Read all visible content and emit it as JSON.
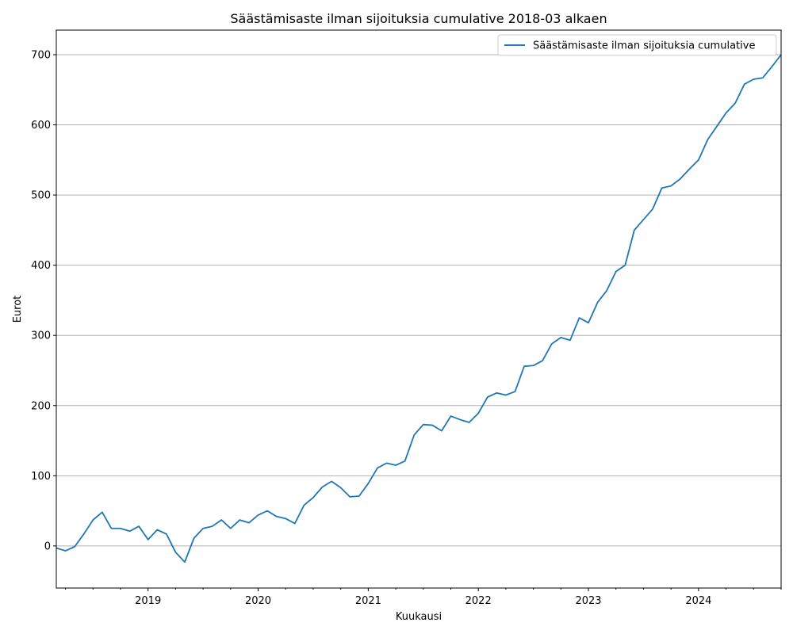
{
  "chart_data": {
    "type": "line",
    "title": "Säästämisaste ilman sijoituksia cumulative 2018-03 alkaen",
    "xlabel": "Kuukausi",
    "ylabel": "Eurot",
    "grid": "y",
    "legend_position": "top-right",
    "xlim": [
      "2018-03",
      "2024-10"
    ],
    "ylim": [
      -60,
      735
    ],
    "x_ticks": [
      "2019",
      "2020",
      "2021",
      "2022",
      "2023",
      "2024"
    ],
    "y_ticks": [
      0,
      100,
      200,
      300,
      400,
      500,
      600,
      700
    ],
    "series": [
      {
        "name": "Säästämisaste ilman sijoituksia cumulative",
        "color": "#1f77b4",
        "x": [
          "2018-03",
          "2018-04",
          "2018-05",
          "2018-06",
          "2018-07",
          "2018-08",
          "2018-09",
          "2018-10",
          "2018-11",
          "2018-12",
          "2019-01",
          "2019-02",
          "2019-03",
          "2019-04",
          "2019-05",
          "2019-06",
          "2019-07",
          "2019-08",
          "2019-09",
          "2019-10",
          "2019-11",
          "2019-12",
          "2020-01",
          "2020-02",
          "2020-03",
          "2020-04",
          "2020-05",
          "2020-06",
          "2020-07",
          "2020-08",
          "2020-09",
          "2020-10",
          "2020-11",
          "2020-12",
          "2021-01",
          "2021-02",
          "2021-03",
          "2021-04",
          "2021-05",
          "2021-06",
          "2021-07",
          "2021-08",
          "2021-09",
          "2021-10",
          "2021-11",
          "2021-12",
          "2022-01",
          "2022-02",
          "2022-03",
          "2022-04",
          "2022-05",
          "2022-06",
          "2022-07",
          "2022-08",
          "2022-09",
          "2022-10",
          "2022-11",
          "2022-12",
          "2023-01",
          "2023-02",
          "2023-03",
          "2023-04",
          "2023-05",
          "2023-06",
          "2023-07",
          "2023-08",
          "2023-09",
          "2023-10",
          "2023-11",
          "2023-12",
          "2024-01",
          "2024-02",
          "2024-03",
          "2024-04",
          "2024-05",
          "2024-06",
          "2024-07",
          "2024-08",
          "2024-09",
          "2024-10"
        ],
        "values": [
          -3,
          -7,
          -1,
          17,
          37,
          48,
          25,
          25,
          21,
          28,
          9,
          23,
          17,
          -9,
          -23,
          11,
          25,
          28,
          37,
          25,
          37,
          33,
          44,
          50,
          42,
          39,
          32,
          58,
          69,
          84,
          92,
          83,
          70,
          71,
          89,
          111,
          118,
          115,
          121,
          158,
          173,
          172,
          164,
          185,
          180,
          176,
          189,
          212,
          218,
          215,
          220,
          256,
          257,
          264,
          288,
          297,
          293,
          325,
          318,
          347,
          364,
          391,
          400,
          450,
          465,
          480,
          510,
          513,
          523,
          537,
          550,
          579,
          598,
          617,
          631,
          658,
          665,
          667,
          683,
          700
        ]
      }
    ]
  }
}
